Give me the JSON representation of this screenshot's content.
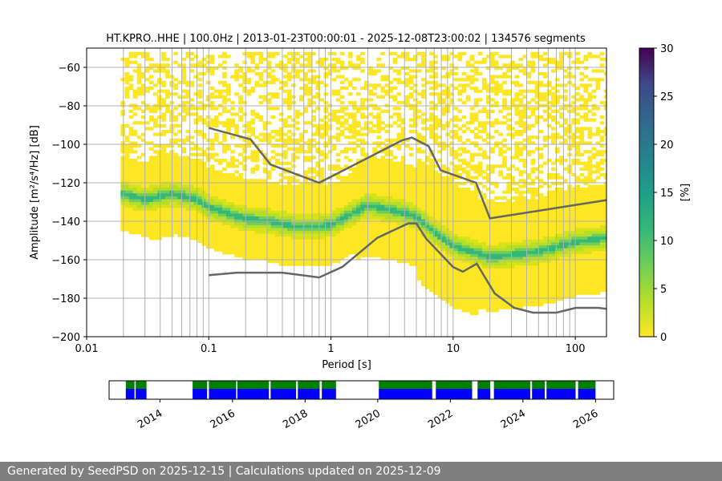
{
  "chart_data": {
    "type": "heatmap",
    "title": "HT.KPRO..HHE | 100.0Hz | 2013-01-23T00:00:01 - 2025-12-08T23:00:02 | 134576 segments",
    "xlabel": "Period [s]",
    "ylabel": "Amplitude [m²/s⁴/Hz] [dB]",
    "x_scale": "log",
    "xlim": [
      0.01,
      180
    ],
    "ylim": [
      -200,
      -50
    ],
    "x_ticks": [
      "0.01",
      "0.1",
      "1",
      "10",
      "100"
    ],
    "y_ticks": [
      "−60",
      "−80",
      "−100",
      "−120",
      "−140",
      "−160",
      "−180",
      "−200"
    ],
    "colorbar": {
      "label": "[%]",
      "range": [
        0,
        30
      ],
      "ticks": [
        "0",
        "5",
        "10",
        "15",
        "20",
        "25",
        "30"
      ],
      "colormap": "viridis"
    },
    "mode_curve": {
      "period": [
        0.02,
        0.03,
        0.05,
        0.08,
        0.1,
        0.2,
        0.3,
        0.5,
        0.8,
        1.0,
        2.0,
        4.0,
        5.0,
        7.0,
        10,
        20,
        50,
        100,
        180
      ],
      "amplitude": [
        -125,
        -128,
        -125,
        -128,
        -132,
        -138,
        -139,
        -142,
        -142,
        -141,
        -131,
        -135,
        -137,
        -145,
        -152,
        -158,
        -155,
        -150,
        -148
      ]
    },
    "nhnm": {
      "period": [
        0.1,
        0.22,
        0.32,
        0.8,
        3.8,
        4.6,
        6.3,
        7.9,
        15.4,
        20,
        180
      ],
      "amplitude": [
        -91.5,
        -97.4,
        -110.5,
        -120,
        -98,
        -96.5,
        -101,
        -113.5,
        -120,
        -138.5,
        -129
      ]
    },
    "nlnm": {
      "period": [
        0.1,
        0.17,
        0.4,
        0.8,
        1.24,
        2.4,
        4.3,
        5.0,
        6.0,
        10,
        12,
        15.6,
        21.9,
        31.6,
        45,
        70,
        101,
        154,
        180
      ],
      "amplitude": [
        -168,
        -166.7,
        -166.7,
        -169.2,
        -163.7,
        -148.6,
        -141.1,
        -141.1,
        -149,
        -163.8,
        -166.2,
        -162.1,
        -177.5,
        -185,
        -187.5,
        -187.5,
        -185,
        -185,
        -185.5
      ]
    },
    "timeline": {
      "x_ticks": [
        "2014",
        "2016",
        "2018",
        "2020",
        "2022",
        "2024",
        "2026"
      ],
      "coverage_colors": [
        "#0000ff",
        "#008000"
      ]
    }
  },
  "footer": {
    "text": "Generated by SeedPSD on 2025-12-15 | Calculations updated on 2025-12-09"
  }
}
